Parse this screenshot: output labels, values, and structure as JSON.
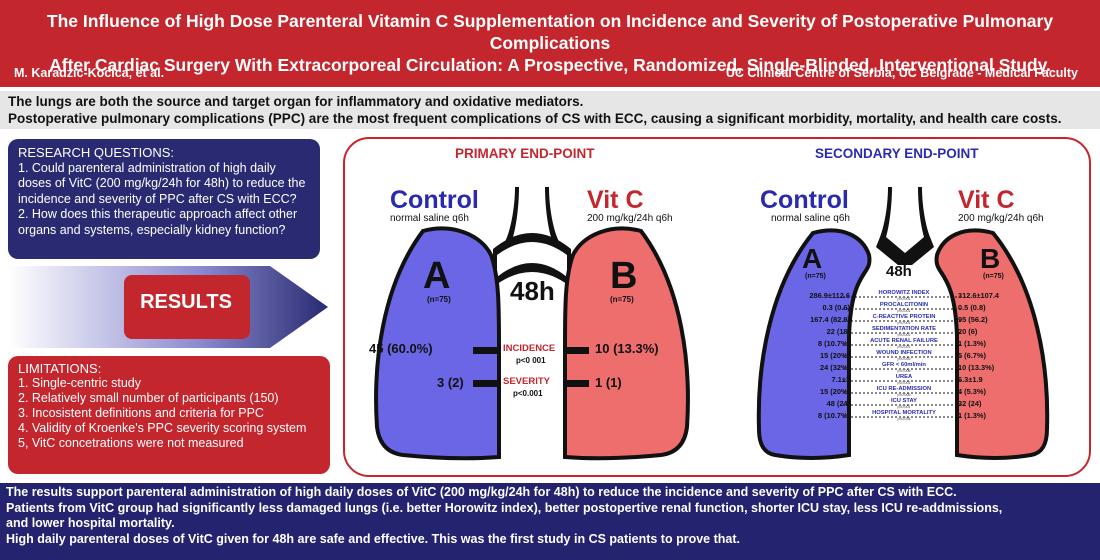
{
  "header": {
    "title_line1": "The Influence of High Dose Parenteral Vitamin C Supplementation on Incidence and Severity of Postoperative Pulmonary Complications",
    "title_line2": "After Cardiac Surgery With Extracorporeal Circulation: A Prospective, Randomized, Single-Blinded, Interventional Study.",
    "authors": "M. Karadzic-Kocica, et al.",
    "affiliation": "UC Clinical Centre of Serbia, UC Belgrade - Medical Faculty"
  },
  "intro": {
    "line1": "The lungs are both the source and target organ for inflammatory and oxidative mediators.",
    "line2": "Postoperative pulmonary complications (PPC) are the most frequent complications of CS with ECC, causing a significant morbidity, mortality, and health care costs."
  },
  "research_questions": {
    "heading": "RESEARCH QUESTIONS:",
    "q1": "1. Could parenteral administration of high daily doses of VitC (200 mg/kg/24h for 48h) to reduce the incidence and severity of PPC after CS with ECC?",
    "q2": "2. How does this therapeutic approach affect other organs and systems, especially kidney function?"
  },
  "results_label": "RESULTS",
  "limitations": {
    "heading": "LIMITATIONS:",
    "items": [
      "1. Single-centric study",
      "2. Relatively small number of participants (150)",
      "3. Incosistent definitions and criteria for PPC",
      "4. Validity of Kroenke's PPC severity scoring system",
      "5, VitC concetrations were not measured"
    ]
  },
  "primary": {
    "title": "PRIMARY END-POINT",
    "control_label": "Control",
    "control_sub": "normal saline q6h",
    "vitc_label": "Vit C",
    "vitc_sub": "200 mg/kg/24h q6h",
    "group_a": "A",
    "group_a_n": "(n=75)",
    "group_b": "B",
    "group_b_n": "(n=75)",
    "duration": "48h",
    "incidence_label": "INCIDENCE",
    "incidence_p": "p<0 001",
    "incidence_control": "45 (60.0%)",
    "incidence_vitc": "10 (13.3%)",
    "severity_label": "SEVERITY",
    "severity_p": "p<0.001",
    "severity_control": "3 (2)",
    "severity_vitc": "1 (1)"
  },
  "secondary": {
    "title": "SECONDARY END-POINT",
    "control_label": "Control",
    "control_sub": "normal saline q6h",
    "vitc_label": "Vit C",
    "vitc_sub": "200 mg/kg/24h q6h",
    "group_a": "A",
    "group_a_n": "(n=75)",
    "group_b": "B",
    "group_b_n": "(n=75)",
    "duration": "48h",
    "rows": [
      {
        "control": "286.9±112.6",
        "label": "HOROWITZ INDEX",
        "p": "p<0.001",
        "vitc": "312.6±107.4"
      },
      {
        "control": "0.3 (0.6)",
        "label": "PROCALCITONIN",
        "p": "p<0.001",
        "vitc": "0.5 (0.8)"
      },
      {
        "control": "167.4 (82.9)",
        "label": "C-REACTIVE PROTEIN",
        "p": "p<0.001",
        "vitc": "95 (56.2)"
      },
      {
        "control": "22 (18)",
        "label": "SEDIMENTATION RATE",
        "p": "p<0.001",
        "vitc": "20 (6)"
      },
      {
        "control": "8 (10.7%)",
        "label": "ACUTE RENAL FAILURE",
        "p": "p<0.001",
        "vitc": "1 (1.3%)"
      },
      {
        "control": "15 (20%)",
        "label": "WOUND INFECTION",
        "p": "p=0.039",
        "vitc": "5 (6.7%)"
      },
      {
        "control": "24 (32%)",
        "label": "GFR < 60ml/min",
        "p": "p=0.006",
        "vitc": "10 (13.3%)"
      },
      {
        "control": "7.1±3",
        "label": "UREA",
        "p": "p<0.001",
        "vitc": "6.3±1.9"
      },
      {
        "control": "15 (20%)",
        "label": "ICU RE-ADMISSION",
        "p": "p=0.005",
        "vitc": "4 (5.3%)"
      },
      {
        "control": "48 (24)",
        "label": "ICU STAY",
        "p": "p<0.001",
        "vitc": "32 (24)"
      },
      {
        "control": "8 (10.7%)",
        "label": "HOSPITAL MORTALITY",
        "p": "p=0.034",
        "vitc": "1 (1.3%)"
      }
    ]
  },
  "conclusion": {
    "line1": "The results support parenteral administration of high daily doses of VitC (200 mg/kg/24h for 48h) to reduce the incidence and severity of PPC after CS with ECC.",
    "line2": "Patients from VitC group had significantly less damaged lungs (i.e. better Horowitz index), better postopertive renal function, shorter ICU stay, less ICU re-addmissions,",
    "line3": "and lower hospital mortality.",
    "line4": "High daily parenteral doses of VitC given for 48h are safe and effective. This was the first study in CS patients to prove that."
  },
  "colors": {
    "red": "#c4262e",
    "navy": "#2a2a72",
    "lung_blue": "#6a66e6",
    "lung_red": "#ee6e6e"
  }
}
